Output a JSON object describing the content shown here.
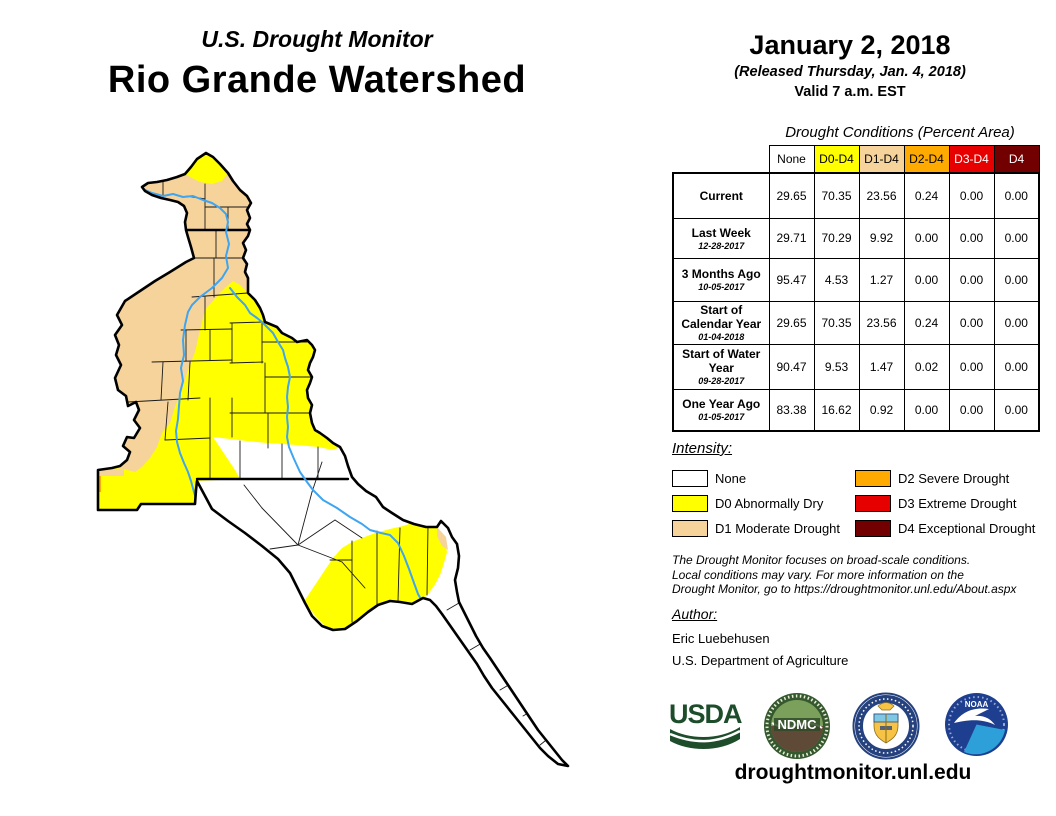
{
  "title": {
    "line1": "U.S. Drought Monitor",
    "line2": "Rio Grande Watershed"
  },
  "date_block": {
    "date": "January 2, 2018",
    "released": "(Released Thursday, Jan. 4, 2018)",
    "valid": "Valid 7 a.m. EST"
  },
  "table": {
    "heading": "Drought Conditions (Percent Area)",
    "columns": [
      {
        "label": "None",
        "bg": "#FFFFFF",
        "fg": "#000000"
      },
      {
        "label": "D0-D4",
        "bg": "#FFFF00",
        "fg": "#000000"
      },
      {
        "label": "D1-D4",
        "bg": "#F6D39B",
        "fg": "#000000"
      },
      {
        "label": "D2-D4",
        "bg": "#FFAA00",
        "fg": "#000000"
      },
      {
        "label": "D3-D4",
        "bg": "#E60000",
        "fg": "#FFFFFF"
      },
      {
        "label": "D4",
        "bg": "#730000",
        "fg": "#FFFFFF"
      }
    ],
    "rows": [
      {
        "label": "Current",
        "sublabel": "",
        "values": [
          "29.65",
          "70.35",
          "23.56",
          "0.24",
          "0.00",
          "0.00"
        ]
      },
      {
        "label": "Last Week",
        "sublabel": "12-28-2017",
        "values": [
          "29.71",
          "70.29",
          "9.92",
          "0.00",
          "0.00",
          "0.00"
        ]
      },
      {
        "label": "3 Months Ago",
        "sublabel": "10-05-2017",
        "values": [
          "95.47",
          "4.53",
          "1.27",
          "0.00",
          "0.00",
          "0.00"
        ]
      },
      {
        "label": "Start of Calendar Year",
        "sublabel": "01-04-2018",
        "values": [
          "29.65",
          "70.35",
          "23.56",
          "0.24",
          "0.00",
          "0.00"
        ]
      },
      {
        "label": "Start of Water Year",
        "sublabel": "09-28-2017",
        "values": [
          "90.47",
          "9.53",
          "1.47",
          "0.02",
          "0.00",
          "0.00"
        ]
      },
      {
        "label": "One Year Ago",
        "sublabel": "01-05-2017",
        "values": [
          "83.38",
          "16.62",
          "0.92",
          "0.00",
          "0.00",
          "0.00"
        ]
      }
    ]
  },
  "legend": {
    "heading": "Intensity:",
    "items": [
      {
        "label": "None",
        "color": "#FFFFFF"
      },
      {
        "label": "D0 Abnormally Dry",
        "color": "#FFFF00"
      },
      {
        "label": "D1 Moderate Drought",
        "color": "#F6D39B"
      },
      {
        "label": "D2 Severe Drought",
        "color": "#FFAA00"
      },
      {
        "label": "D3 Extreme Drought",
        "color": "#E60000"
      },
      {
        "label": "D4 Exceptional Drought",
        "color": "#730000"
      }
    ]
  },
  "disclaimer": {
    "lines": [
      "The Drought Monitor focuses on broad-scale conditions.",
      "Local conditions may vary. For more information on the",
      "Drought Monitor, go to https://droughtmonitor.unl.edu/About.aspx"
    ]
  },
  "author": {
    "heading": "Author:",
    "name": "Eric Luebehusen",
    "org": "U.S. Department of Agriculture"
  },
  "logos": {
    "usda_text": "USDA",
    "ndmc_text": "NDMC",
    "noaa_text": "NOAA"
  },
  "footer": {
    "url": "droughtmonitor.unl.edu"
  },
  "map": {
    "label": "Rio Grande Watershed drought conditions map",
    "river_color": "#3FA5F0",
    "outline_color": "#000000",
    "colors": {
      "none": "#FFFFFF",
      "d0": "#FFFF00",
      "d1": "#F6D39B",
      "d2": "#FFAA00",
      "d3": "#E60000",
      "d4": "#730000"
    }
  }
}
